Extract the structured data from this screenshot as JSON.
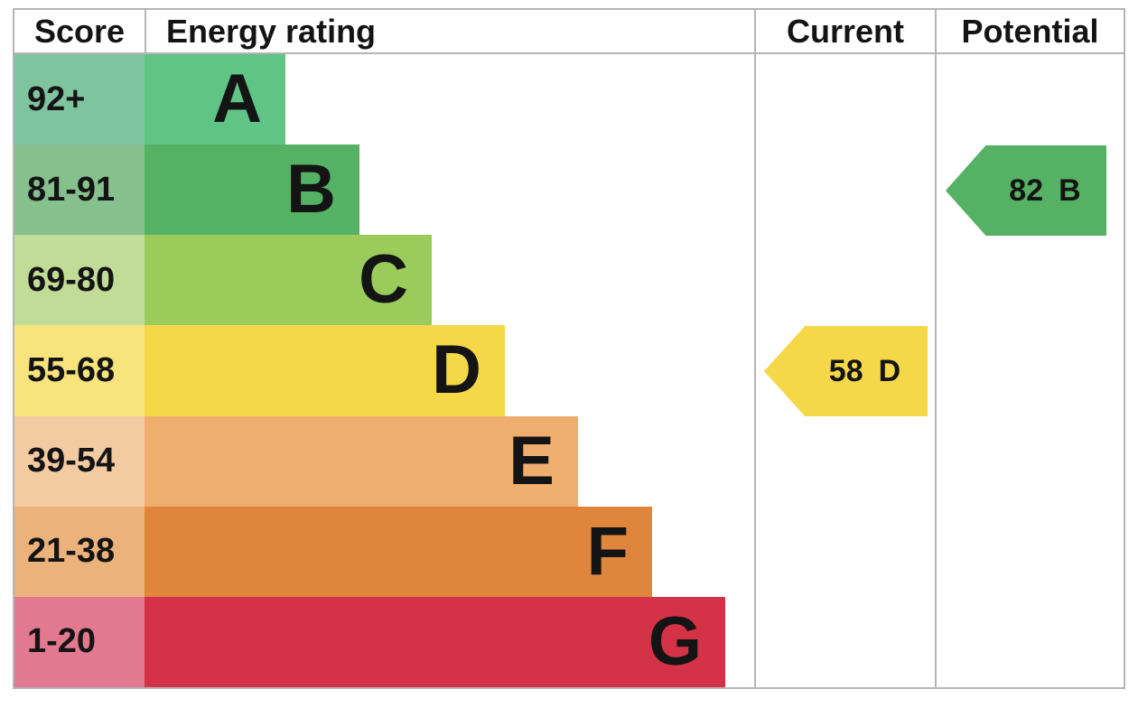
{
  "header": {
    "score": "Score",
    "energy_rating": "Energy rating",
    "current": "Current",
    "potential": "Potential"
  },
  "chart_data": {
    "type": "epc_energy_rating_bar",
    "title": "Energy rating",
    "columns": [
      "Score",
      "Energy rating",
      "Current",
      "Potential"
    ],
    "bands": [
      {
        "score_range": "92+",
        "letter": "A",
        "bar_color": "#5fc486",
        "score_cell_color": "#7ec59f"
      },
      {
        "score_range": "81-91",
        "letter": "B",
        "bar_color": "#55b163",
        "score_cell_color": "#85c08d"
      },
      {
        "score_range": "69-80",
        "letter": "C",
        "bar_color": "#9bcb5b",
        "score_cell_color": "#c1dc96"
      },
      {
        "score_range": "55-68",
        "letter": "D",
        "bar_color": "#f5d848",
        "score_cell_color": "#f8e47d"
      },
      {
        "score_range": "39-54",
        "letter": "E",
        "bar_color": "#efad6e",
        "score_cell_color": "#f3cba3"
      },
      {
        "score_range": "21-38",
        "letter": "F",
        "bar_color": "#e0853c",
        "score_cell_color": "#ecb27b"
      },
      {
        "score_range": "1-20",
        "letter": "G",
        "bar_color": "#d33247",
        "score_cell_color": "#e27990"
      }
    ],
    "current": {
      "score": "58",
      "letter": "D",
      "arrow_color": "#f5d848"
    },
    "potential": {
      "score": "82",
      "letter": "B",
      "arrow_color": "#55b163"
    },
    "border_color": "#b5b5b5"
  }
}
